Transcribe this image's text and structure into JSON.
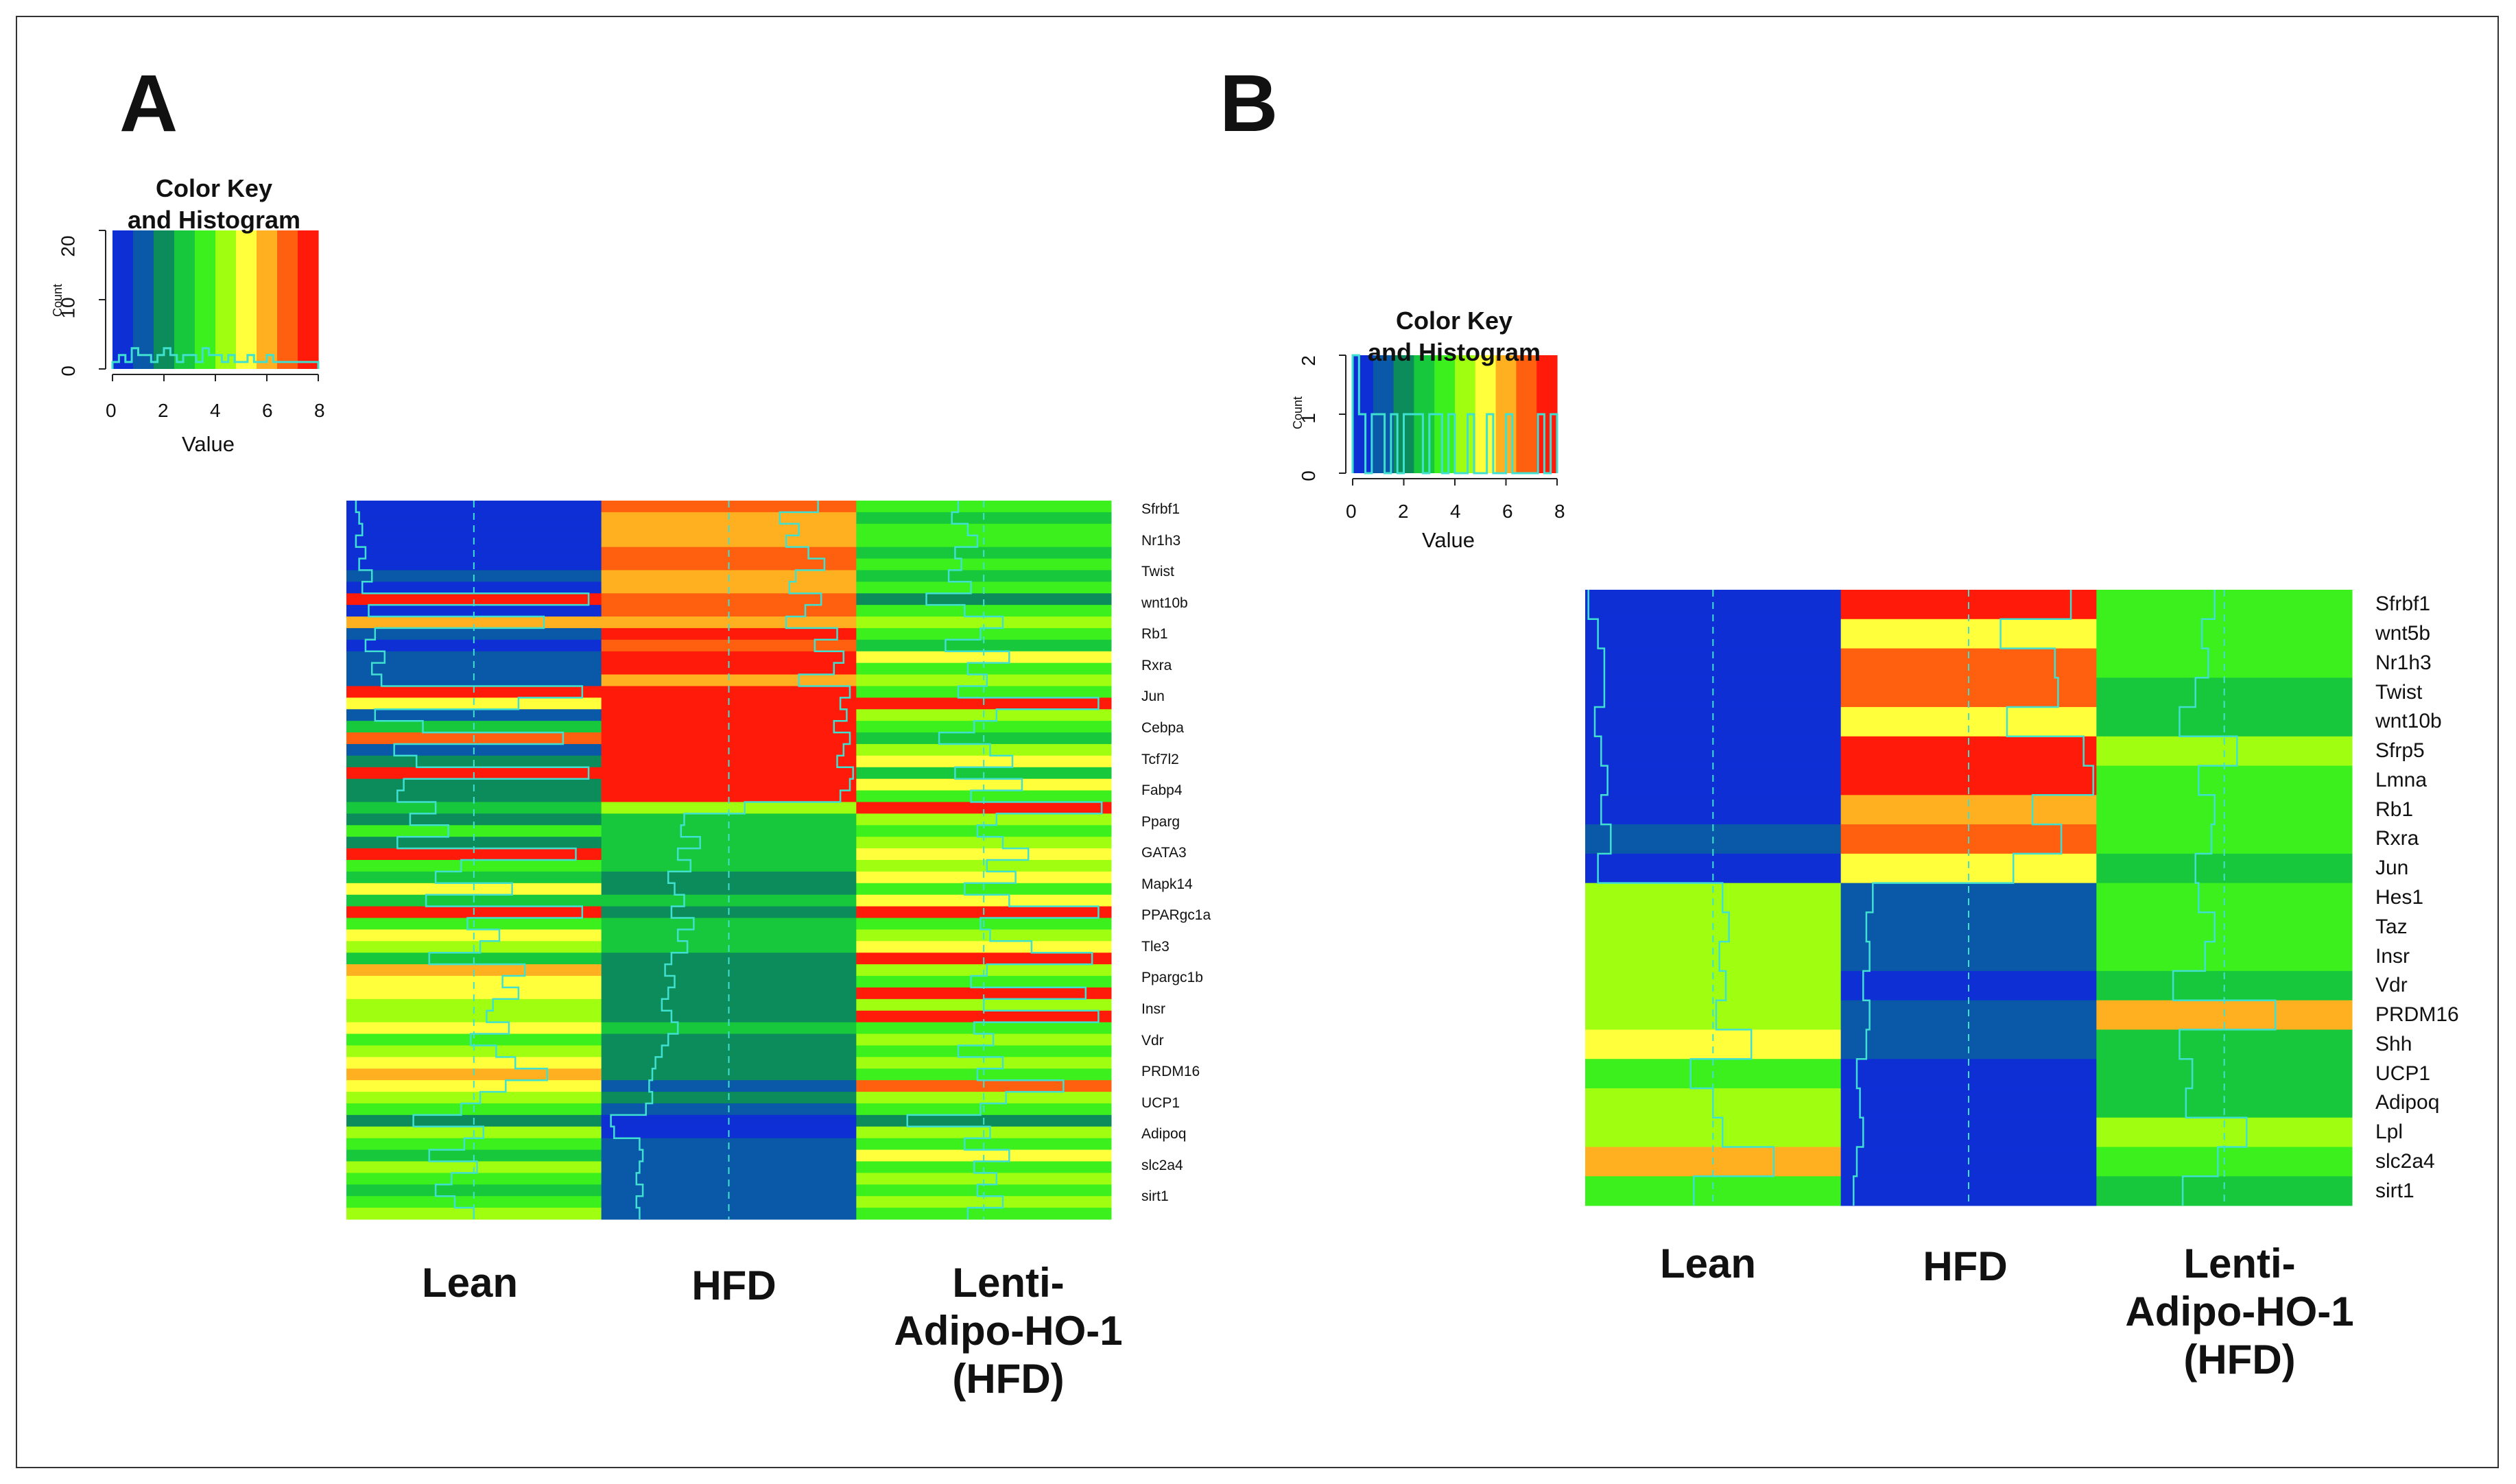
{
  "panels": {
    "a": {
      "letter": "A"
    },
    "b": {
      "letter": "B"
    }
  },
  "color_key": {
    "title_line1": "Color Key",
    "title_line2": "and Histogram",
    "value_label": "Value",
    "count_label": "Count",
    "x_ticks": [
      "0",
      "2",
      "4",
      "6",
      "8"
    ],
    "a_y_ticks": [
      "0",
      "10",
      "20"
    ],
    "b_y_ticks": [
      "0",
      "1",
      "2"
    ],
    "palette": [
      "#0d2fd4",
      "#0a58a8",
      "#0c8c5a",
      "#18c83c",
      "#3cf01e",
      "#a0ff10",
      "#ffff3c",
      "#ffb020",
      "#ff6010",
      "#ff1a0a"
    ],
    "trace_color": "#40e0d0"
  },
  "columns": {
    "lean": "Lean",
    "hfd": "HFD",
    "lenti_line1": "Lenti-",
    "lenti_line2": "Adipo-HO-1",
    "lenti_line3": "(HFD)"
  },
  "chart_data": [
    {
      "type": "heatmap",
      "panel": "A",
      "columns": [
        "Lean",
        "HFD",
        "Lenti-Adipo-HO-1 (HFD)"
      ],
      "value_range": [
        0,
        8
      ],
      "rows_visible_labels": [
        "Sfrbf1",
        "Nr1h3",
        "Twist",
        "wnt10b",
        "Rb1",
        "Rxra",
        "Jun",
        "Cebpa",
        "Tcf7l2",
        "Fabp4",
        "Pparg",
        "GATA3",
        "Mapk14",
        "PPARgc1a",
        "Tle3",
        "Ppargc1b",
        "Insr",
        "Vdr",
        "PRDM16",
        "UCP1",
        "Adipoq",
        "slc2a4",
        "sirt1"
      ],
      "values": [
        [
          0.3,
          6.8,
          3.2
        ],
        [
          0.4,
          5.6,
          3.0
        ],
        [
          0.5,
          6.2,
          3.5
        ],
        [
          0.3,
          5.8,
          3.8
        ],
        [
          0.6,
          6.5,
          3.1
        ],
        [
          0.4,
          7.0,
          3.3
        ],
        [
          0.8,
          6.1,
          2.9
        ],
        [
          0.5,
          5.9,
          3.6
        ],
        [
          7.6,
          6.9,
          2.2
        ],
        [
          0.7,
          6.4,
          3.4
        ],
        [
          6.2,
          5.8,
          4.6
        ],
        [
          0.9,
          7.4,
          3.9
        ],
        [
          0.6,
          6.7,
          2.8
        ],
        [
          1.2,
          7.6,
          4.8
        ],
        [
          0.8,
          7.3,
          3.5
        ],
        [
          1.1,
          6.2,
          4.1
        ],
        [
          7.4,
          7.8,
          3.2
        ],
        [
          5.4,
          7.5,
          7.6
        ],
        [
          0.9,
          7.7,
          4.4
        ],
        [
          2.4,
          7.3,
          3.7
        ],
        [
          6.8,
          7.8,
          2.6
        ],
        [
          1.5,
          7.6,
          4.2
        ],
        [
          2.2,
          7.4,
          4.9
        ],
        [
          7.6,
          7.9,
          3.1
        ],
        [
          1.8,
          7.8,
          5.2
        ],
        [
          1.6,
          7.5,
          3.6
        ],
        [
          2.8,
          4.5,
          7.7
        ],
        [
          2.0,
          2.6,
          4.4
        ],
        [
          3.2,
          2.5,
          3.8
        ],
        [
          1.6,
          3.1,
          4.6
        ],
        [
          7.2,
          2.4,
          5.4
        ],
        [
          3.6,
          2.8,
          4.1
        ],
        [
          2.8,
          2.1,
          5.0
        ],
        [
          5.2,
          2.3,
          3.4
        ],
        [
          2.5,
          2.6,
          4.8
        ],
        [
          7.4,
          2.2,
          7.6
        ],
        [
          3.8,
          2.9,
          3.9
        ],
        [
          4.8,
          2.4,
          4.2
        ],
        [
          4.2,
          2.7,
          5.5
        ],
        [
          2.6,
          2.2,
          7.4
        ],
        [
          5.6,
          2.0,
          4.1
        ],
        [
          4.9,
          2.3,
          3.6
        ],
        [
          5.4,
          2.1,
          7.2
        ],
        [
          4.6,
          1.9,
          4.0
        ],
        [
          4.4,
          2.2,
          7.6
        ],
        [
          5.1,
          2.4,
          3.7
        ],
        [
          3.9,
          2.1,
          4.3
        ],
        [
          4.7,
          1.9,
          3.2
        ],
        [
          5.3,
          1.7,
          4.6
        ],
        [
          6.3,
          1.6,
          3.8
        ],
        [
          5.0,
          1.5,
          6.5
        ],
        [
          4.2,
          1.6,
          4.7
        ],
        [
          3.6,
          1.4,
          3.9
        ],
        [
          2.1,
          0.3,
          1.6
        ],
        [
          4.3,
          0.4,
          4.2
        ],
        [
          3.7,
          1.2,
          3.4
        ],
        [
          2.6,
          1.3,
          4.8
        ],
        [
          4.1,
          1.2,
          3.7
        ],
        [
          3.3,
          1.1,
          4.4
        ],
        [
          2.8,
          1.3,
          3.8
        ],
        [
          3.4,
          1.1,
          4.6
        ],
        [
          4.0,
          1.2,
          3.5
        ]
      ]
    },
    {
      "type": "heatmap",
      "panel": "B",
      "columns": [
        "Lean",
        "HFD",
        "Lenti-Adipo-HO-1 (HFD)"
      ],
      "value_range": [
        0,
        8
      ],
      "rows": [
        "Sfrbf1",
        "wnt5b",
        "Nr1h3",
        "Twist",
        "wnt10b",
        "Sfrp5",
        "Lmna",
        "Rb1",
        "Rxra",
        "Jun",
        "Hes1",
        "Taz",
        "Insr",
        "Vdr",
        "PRDM16",
        "Shh",
        "UCP1",
        "Adipoq",
        "Lpl",
        "slc2a4",
        "sirt1"
      ],
      "values": [
        [
          0.1,
          7.2,
          3.7
        ],
        [
          0.4,
          5.0,
          3.3
        ],
        [
          0.6,
          6.7,
          3.5
        ],
        [
          0.6,
          6.8,
          3.1
        ],
        [
          0.3,
          5.2,
          2.6
        ],
        [
          0.5,
          7.6,
          4.4
        ],
        [
          0.7,
          7.9,
          3.2
        ],
        [
          0.5,
          6.0,
          3.7
        ],
        [
          0.8,
          6.9,
          3.6
        ],
        [
          0.4,
          5.4,
          3.1
        ],
        [
          4.3,
          1.0,
          3.2
        ],
        [
          4.5,
          0.8,
          3.7
        ],
        [
          4.2,
          0.9,
          3.4
        ],
        [
          4.4,
          0.7,
          2.4
        ],
        [
          4.1,
          0.9,
          5.6
        ],
        [
          5.2,
          0.8,
          2.6
        ],
        [
          3.3,
          0.5,
          3.0
        ],
        [
          4.0,
          0.6,
          2.8
        ],
        [
          4.3,
          0.7,
          4.7
        ],
        [
          5.9,
          0.5,
          3.8
        ],
        [
          3.4,
          0.4,
          2.7
        ]
      ]
    }
  ],
  "key_histograms": {
    "a": [
      1,
      2,
      1,
      3,
      2,
      2,
      1,
      2,
      3,
      2,
      1,
      2,
      2,
      1,
      3,
      2,
      2,
      1,
      2,
      1,
      1,
      2,
      1,
      1,
      2,
      1,
      1,
      1,
      1,
      1,
      1,
      1
    ],
    "b": [
      2,
      1,
      0,
      1,
      1,
      0,
      1,
      0,
      1,
      1,
      1,
      0,
      1,
      1,
      0,
      1,
      0,
      0,
      1,
      0,
      0,
      1,
      0,
      0,
      1,
      0,
      0,
      0,
      0,
      1,
      0,
      1
    ]
  }
}
